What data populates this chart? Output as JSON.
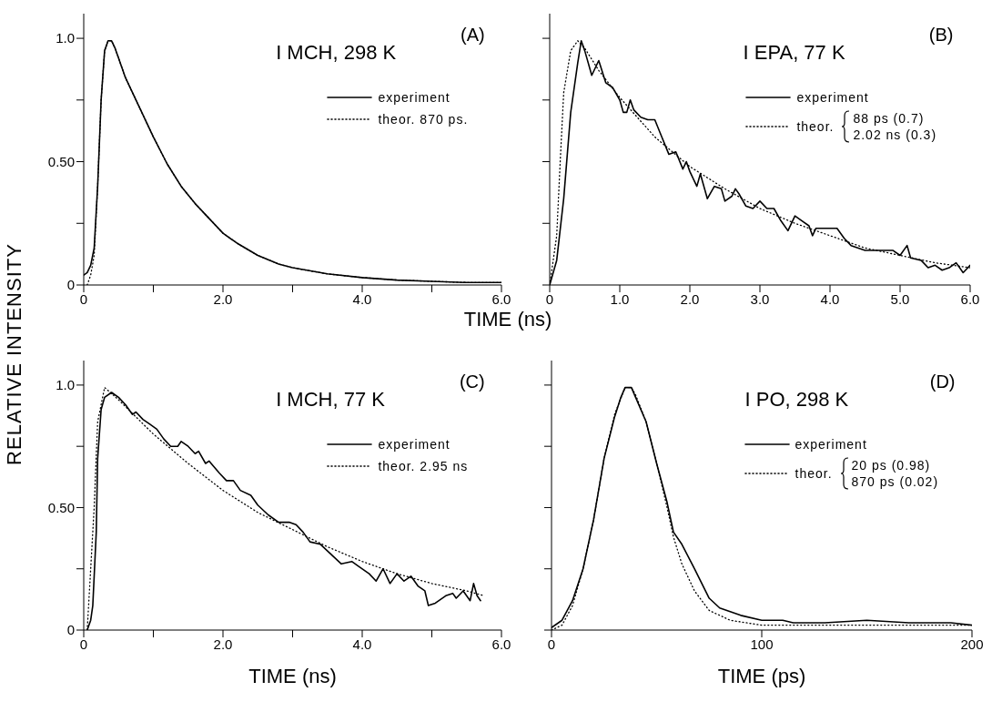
{
  "chart_data": [
    {
      "type": "line",
      "title": "I MCH, 298 K",
      "xlabel": "TIME (ns)",
      "ylabel": "RELATIVE INTENSITY",
      "annotations": [
        "(A)"
      ],
      "legend": "top right",
      "xlim": [
        0,
        6
      ],
      "xticks": [
        0,
        {
          "value": 1,
          "label": null
        },
        {
          "value": 2,
          "label": "2.0"
        },
        {
          "value": 3,
          "label": null
        },
        {
          "value": 4,
          "label": "4.0"
        },
        {
          "value": 5,
          "label": null
        },
        {
          "value": 6,
          "label": "6.0"
        }
      ],
      "ylim": [
        0,
        1.1
      ],
      "yticks": [
        0,
        {
          "value": 0.25,
          "label": null
        },
        {
          "value": 0.5,
          "label": "0.50"
        },
        {
          "value": 0.75,
          "label": null
        },
        {
          "value": 1,
          "label": "1.0"
        }
      ],
      "series": [
        {
          "name": "experiment",
          "color": "#000000",
          "line_style": "solid",
          "x": [
            0,
            0.05,
            0.1,
            0.15,
            0.2,
            0.25,
            0.3,
            0.35,
            0.4,
            0.45,
            0.5,
            0.6,
            0.7,
            0.8,
            1.0,
            1.2,
            1.4,
            1.6,
            1.8,
            2.0,
            2.2,
            2.5,
            2.8,
            3.0,
            3.5,
            4.0,
            4.5,
            5.0,
            5.5,
            6.0
          ],
          "values": [
            0.04,
            0.05,
            0.08,
            0.15,
            0.4,
            0.75,
            0.95,
            0.99,
            0.99,
            0.96,
            0.92,
            0.84,
            0.78,
            0.72,
            0.6,
            0.49,
            0.4,
            0.33,
            0.27,
            0.21,
            0.17,
            0.12,
            0.085,
            0.07,
            0.045,
            0.03,
            0.02,
            0.015,
            0.01,
            0.01
          ]
        },
        {
          "name": "theor. 870 ps.",
          "color": "#000000",
          "line_style": "dotted",
          "x": [
            0.05,
            0.1,
            0.15,
            0.2,
            0.25,
            0.3,
            0.35,
            0.4,
            0.45,
            0.5,
            0.6,
            0.7,
            0.8,
            1.0,
            1.2,
            1.4,
            1.6,
            1.8,
            2.0,
            2.2,
            2.5,
            2.8,
            3.0,
            3.5,
            4.0,
            4.5,
            5.0,
            5.5,
            6.0
          ],
          "values": [
            0,
            0.04,
            0.12,
            0.4,
            0.75,
            0.95,
            0.99,
            0.99,
            0.96,
            0.92,
            0.84,
            0.78,
            0.72,
            0.6,
            0.49,
            0.4,
            0.33,
            0.27,
            0.21,
            0.17,
            0.12,
            0.085,
            0.07,
            0.045,
            0.03,
            0.02,
            0.015,
            0.01,
            0.01
          ]
        }
      ]
    },
    {
      "type": "line",
      "title": "I EPA, 77 K",
      "annotations": [
        "(B)",
        "88 ps (0.7)",
        "2.02 ns (0.3)"
      ],
      "legend": "top right",
      "tick_labels": "x",
      "xlim": [
        0,
        6
      ],
      "xticks": [
        0,
        {
          "value": 1,
          "label": "1.0"
        },
        {
          "value": 2,
          "label": "2.0"
        },
        {
          "value": 3,
          "label": "3.0"
        },
        {
          "value": 4,
          "label": "4.0"
        },
        {
          "value": 5,
          "label": "5.0"
        },
        {
          "value": 6,
          "label": "6.0"
        }
      ],
      "ylim": [
        0,
        1.1
      ],
      "yticks": [
        {
          "value": 0,
          "label": null
        },
        {
          "value": 0.25,
          "label": null
        },
        {
          "value": 0.5,
          "label": null
        },
        {
          "value": 0.75,
          "label": null
        },
        {
          "value": 1,
          "label": null
        }
      ],
      "series": [
        {
          "name": "experiment",
          "color": "#000000",
          "line_style": "solid",
          "x": [
            0,
            0.1,
            0.2,
            0.3,
            0.4,
            0.45,
            0.5,
            0.6,
            0.7,
            0.8,
            0.9,
            1.0,
            1.05,
            1.1,
            1.15,
            1.2,
            1.3,
            1.4,
            1.5,
            1.6,
            1.7,
            1.8,
            1.9,
            1.95,
            2.0,
            2.1,
            2.15,
            2.25,
            2.35,
            2.45,
            2.5,
            2.6,
            2.65,
            2.7,
            2.8,
            2.9,
            3.0,
            3.1,
            3.2,
            3.3,
            3.4,
            3.5,
            3.6,
            3.7,
            3.75,
            3.8,
            4.0,
            4.1,
            4.2,
            4.3,
            4.5,
            4.7,
            4.9,
            5.0,
            5.1,
            5.15,
            5.3,
            5.4,
            5.5,
            5.6,
            5.7,
            5.8,
            5.9,
            6.0
          ],
          "values": [
            0,
            0.1,
            0.35,
            0.7,
            0.9,
            0.99,
            0.95,
            0.85,
            0.91,
            0.82,
            0.8,
            0.75,
            0.7,
            0.7,
            0.75,
            0.71,
            0.68,
            0.67,
            0.67,
            0.6,
            0.53,
            0.54,
            0.47,
            0.5,
            0.46,
            0.4,
            0.45,
            0.35,
            0.4,
            0.39,
            0.34,
            0.36,
            0.39,
            0.37,
            0.32,
            0.31,
            0.34,
            0.31,
            0.31,
            0.26,
            0.22,
            0.28,
            0.26,
            0.24,
            0.2,
            0.23,
            0.23,
            0.23,
            0.19,
            0.16,
            0.14,
            0.14,
            0.14,
            0.12,
            0.16,
            0.11,
            0.1,
            0.07,
            0.08,
            0.06,
            0.07,
            0.09,
            0.05,
            0.08
          ]
        },
        {
          "name": "theor.",
          "color": "#000000",
          "line_style": "dotted",
          "x": [
            0,
            0.1,
            0.15,
            0.2,
            0.3,
            0.4,
            0.5,
            0.7,
            1.0,
            1.5,
            2.0,
            2.5,
            3.0,
            3.5,
            4.0,
            4.5,
            5.0,
            5.5,
            6.0
          ],
          "values": [
            0,
            0.2,
            0.5,
            0.78,
            0.95,
            0.99,
            0.96,
            0.87,
            0.76,
            0.6,
            0.48,
            0.39,
            0.31,
            0.25,
            0.2,
            0.15,
            0.12,
            0.09,
            0.07
          ]
        }
      ]
    },
    {
      "type": "line",
      "title": "I MCH, 77 K",
      "xlabel": "TIME (ns)",
      "annotations": [
        "(C)"
      ],
      "legend": "top right",
      "xlim": [
        0,
        6
      ],
      "xticks": [
        0,
        {
          "value": 1,
          "label": null
        },
        {
          "value": 2,
          "label": "2.0"
        },
        {
          "value": 3,
          "label": null
        },
        {
          "value": 4,
          "label": "4.0"
        },
        {
          "value": 5,
          "label": null
        },
        {
          "value": 6,
          "label": "6.0"
        }
      ],
      "ylim": [
        0,
        1.1
      ],
      "yticks": [
        0,
        {
          "value": 0.25,
          "label": null
        },
        {
          "value": 0.5,
          "label": "0.50"
        },
        {
          "value": 0.75,
          "label": null
        },
        {
          "value": 1,
          "label": "1.0"
        }
      ],
      "series": [
        {
          "name": "experiment",
          "color": "#000000",
          "line_style": "solid",
          "x": [
            0.05,
            0.1,
            0.13,
            0.18,
            0.2,
            0.25,
            0.3,
            0.4,
            0.5,
            0.6,
            0.7,
            0.75,
            0.85,
            0.95,
            1.05,
            1.15,
            1.25,
            1.35,
            1.4,
            1.5,
            1.6,
            1.65,
            1.75,
            1.8,
            1.95,
            2.05,
            2.15,
            2.25,
            2.4,
            2.5,
            2.65,
            2.8,
            2.95,
            3.05,
            3.15,
            3.25,
            3.4,
            3.55,
            3.7,
            3.85,
            3.95,
            4.1,
            4.2,
            4.3,
            4.4,
            4.5,
            4.6,
            4.7,
            4.8,
            4.9,
            4.95,
            5.05,
            5.2,
            5.3,
            5.35,
            5.45,
            5.55,
            5.6,
            5.65,
            5.7
          ],
          "values": [
            0,
            0.04,
            0.1,
            0.4,
            0.7,
            0.9,
            0.95,
            0.97,
            0.95,
            0.92,
            0.88,
            0.89,
            0.86,
            0.84,
            0.82,
            0.78,
            0.75,
            0.75,
            0.77,
            0.75,
            0.72,
            0.73,
            0.68,
            0.69,
            0.64,
            0.61,
            0.61,
            0.57,
            0.55,
            0.51,
            0.47,
            0.44,
            0.44,
            0.43,
            0.4,
            0.36,
            0.35,
            0.31,
            0.27,
            0.28,
            0.26,
            0.23,
            0.2,
            0.25,
            0.19,
            0.23,
            0.2,
            0.22,
            0.18,
            0.16,
            0.1,
            0.11,
            0.14,
            0.15,
            0.13,
            0.16,
            0.12,
            0.19,
            0.14,
            0.12
          ]
        },
        {
          "name": "theor. 2.95 ns",
          "color": "#000000",
          "line_style": "dotted",
          "x": [
            0.05,
            0.15,
            0.2,
            0.3,
            0.5,
            1.0,
            1.5,
            2.0,
            2.5,
            3.0,
            3.5,
            4.0,
            4.5,
            5.0,
            5.5,
            5.75
          ],
          "values": [
            0,
            0.5,
            0.85,
            0.99,
            0.94,
            0.8,
            0.68,
            0.57,
            0.48,
            0.41,
            0.34,
            0.28,
            0.23,
            0.19,
            0.16,
            0.14
          ]
        }
      ]
    },
    {
      "type": "line",
      "title": "I PO, 298 K",
      "xlabel": "TIME (ps)",
      "annotations": [
        "(D)",
        "20 ps (0.98)",
        "870 ps (0.02)"
      ],
      "legend": "top right",
      "tick_labels": "x",
      "xlim": [
        0,
        200
      ],
      "xticks": [
        0,
        100,
        200
      ],
      "ylim": [
        0,
        1.1
      ],
      "yticks": [
        {
          "value": 0,
          "label": null
        },
        {
          "value": 0.25,
          "label": null
        },
        {
          "value": 0.5,
          "label": null
        },
        {
          "value": 0.75,
          "label": null
        },
        {
          "value": 1,
          "label": null
        }
      ],
      "series": [
        {
          "name": "experiment",
          "color": "#000000",
          "line_style": "solid",
          "x": [
            0,
            5,
            10,
            15,
            20,
            25,
            30,
            33,
            35,
            38,
            40,
            45,
            50,
            55,
            58,
            62,
            68,
            75,
            80,
            90,
            100,
            110,
            115,
            130,
            150,
            170,
            190,
            200
          ],
          "values": [
            0.01,
            0.04,
            0.12,
            0.25,
            0.45,
            0.7,
            0.87,
            0.95,
            0.99,
            0.99,
            0.95,
            0.85,
            0.68,
            0.52,
            0.4,
            0.35,
            0.25,
            0.13,
            0.09,
            0.06,
            0.04,
            0.04,
            0.03,
            0.03,
            0.04,
            0.03,
            0.03,
            0.02
          ]
        },
        {
          "name": "theor.",
          "color": "#000000",
          "line_style": "dotted",
          "x": [
            0,
            5,
            10,
            15,
            20,
            25,
            30,
            35,
            38,
            40,
            45,
            50,
            55,
            58,
            62,
            68,
            75,
            85,
            100,
            120,
            200
          ],
          "values": [
            0,
            0.02,
            0.1,
            0.25,
            0.45,
            0.7,
            0.88,
            0.99,
            0.99,
            0.96,
            0.85,
            0.68,
            0.5,
            0.38,
            0.27,
            0.16,
            0.08,
            0.04,
            0.02,
            0.02,
            0.02
          ]
        }
      ]
    }
  ]
}
